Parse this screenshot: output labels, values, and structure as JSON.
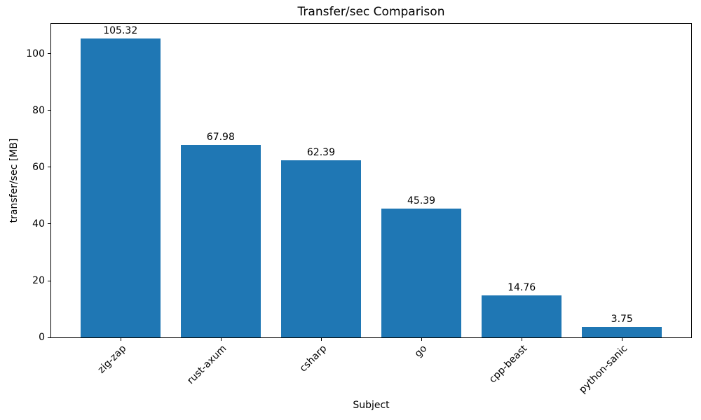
{
  "chart_data": {
    "type": "bar",
    "title": "Transfer/sec Comparison",
    "xlabel": "Subject",
    "ylabel": "transfer/sec [MB]",
    "categories": [
      "zig-zap",
      "rust-axum",
      "csharp",
      "go",
      "cpp-beast",
      "python-sanic"
    ],
    "values": [
      105.32,
      67.98,
      62.39,
      45.39,
      14.76,
      3.75
    ],
    "value_labels": [
      "105.32",
      "67.98",
      "62.39",
      "45.39",
      "14.76",
      "3.75"
    ],
    "yticks": [
      0,
      20,
      40,
      60,
      80,
      100
    ],
    "ylim": [
      0,
      110.6
    ],
    "bar_color": "#1f77b4",
    "grid": false,
    "legend_position": "none",
    "x_tick_rotation_deg": 45
  }
}
